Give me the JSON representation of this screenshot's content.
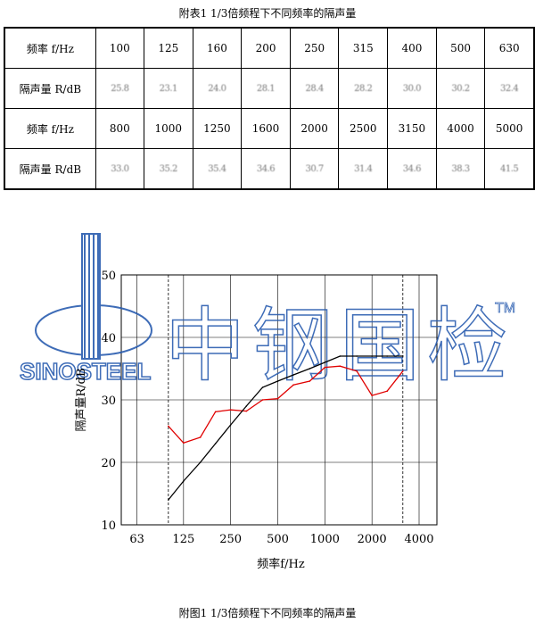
{
  "table_caption": "附表1 1/3倍频程下不同频率的隔声量",
  "figure_caption": "附图1 1/3倍频程下不同频率的隔声量",
  "table": {
    "rows": [
      {
        "header": "频率 f/Hz",
        "cells": [
          "100",
          "125",
          "160",
          "200",
          "250",
          "315",
          "400",
          "500",
          "630"
        ],
        "blurred": false
      },
      {
        "header": "隔声量 R/dB",
        "cells": [
          "25.8",
          "23.1",
          "24.0",
          "28.1",
          "28.4",
          "28.2",
          "30.0",
          "30.2",
          "32.4"
        ],
        "blurred": true
      },
      {
        "header": "频率 f/Hz",
        "cells": [
          "800",
          "1000",
          "1250",
          "1600",
          "2000",
          "2500",
          "3150",
          "4000",
          "5000"
        ],
        "blurred": false
      },
      {
        "header": "隔声量 R/dB",
        "cells": [
          "33.0",
          "35.2",
          "35.4",
          "34.6",
          "30.7",
          "31.4",
          "34.6",
          "38.3",
          "41.5"
        ],
        "blurred": true
      }
    ]
  },
  "watermark": {
    "logo_text": "SINOSTEEL",
    "brand_text": "中钢国检",
    "tm": "TM",
    "color": "#2a5db0"
  },
  "chart_data": {
    "type": "line",
    "xlabel": "频率f/Hz",
    "ylabel": "隔声量R/dB",
    "xscale": "log",
    "xlim": [
      50,
      5200
    ],
    "ylim": [
      10,
      50
    ],
    "xticks": [
      63,
      125,
      250,
      500,
      1000,
      2000,
      4000
    ],
    "yticks": [
      10,
      20,
      30,
      40,
      50
    ],
    "grid": true,
    "dashed_vlines": [
      100,
      3150
    ],
    "series": [
      {
        "color": "#e00000",
        "x": [
          100,
          125,
          160,
          200,
          250,
          315,
          400,
          500,
          630,
          800,
          1000,
          1250,
          1600,
          2000,
          2500,
          3150
        ],
        "y": [
          25.8,
          23.1,
          24.0,
          28.1,
          28.4,
          28.2,
          30.0,
          30.2,
          32.4,
          33.0,
          35.2,
          35.4,
          34.6,
          30.7,
          31.4,
          34.6
        ]
      },
      {
        "color": "#000000",
        "x": [
          100,
          125,
          160,
          200,
          250,
          315,
          400,
          500,
          630,
          800,
          1000,
          1250,
          1600,
          2000,
          2500,
          3150
        ],
        "y": [
          14,
          17,
          20,
          23,
          26,
          29,
          32,
          33,
          34,
          35,
          36,
          37,
          37,
          37,
          37,
          37
        ]
      }
    ]
  }
}
